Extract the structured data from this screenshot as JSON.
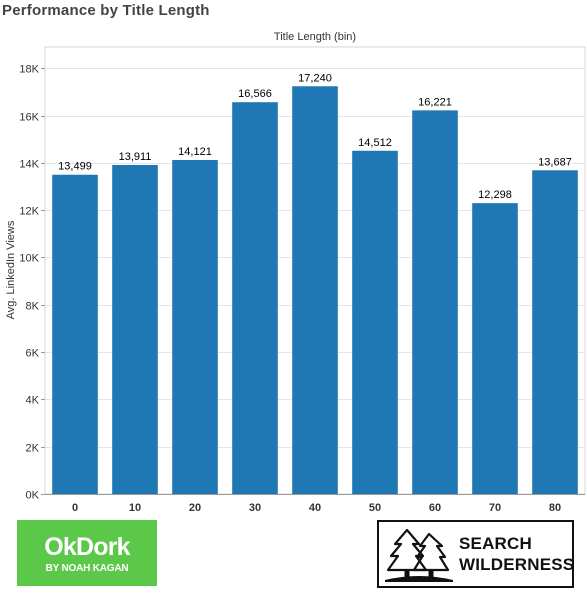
{
  "page": {
    "title": "Performance by Title Length"
  },
  "chart_data": {
    "type": "bar",
    "title": "Performance by Title Length",
    "xlabel": "Title Length (bin)",
    "ylabel": "Avg. LinkedIn Views",
    "categories": [
      "0",
      "10",
      "20",
      "30",
      "40",
      "50",
      "60",
      "70",
      "80"
    ],
    "values": [
      13499,
      13911,
      14121,
      16566,
      17240,
      14512,
      16221,
      12298,
      13687
    ],
    "data_labels": [
      "13,499",
      "13,911",
      "14,121",
      "16,566",
      "17,240",
      "14,512",
      "16,221",
      "12,298",
      "13,687"
    ],
    "y_ticks": [
      0,
      2000,
      4000,
      6000,
      8000,
      10000,
      12000,
      14000,
      16000,
      18000
    ],
    "y_tick_labels": [
      "0K",
      "2K",
      "4K",
      "6K",
      "8K",
      "10K",
      "12K",
      "14K",
      "16K",
      "18K"
    ],
    "ylim": [
      0,
      18900
    ],
    "bar_color": "#1f77b4",
    "grid": true
  },
  "logos": {
    "okdork": {
      "name": "OkDork",
      "tagline": "BY NOAH KAGAN",
      "color": "#5cc84a"
    },
    "search_wilderness": {
      "line1": "SEARCH",
      "line2": "WILDERNESS",
      "icon": "pine-trees-icon"
    }
  }
}
